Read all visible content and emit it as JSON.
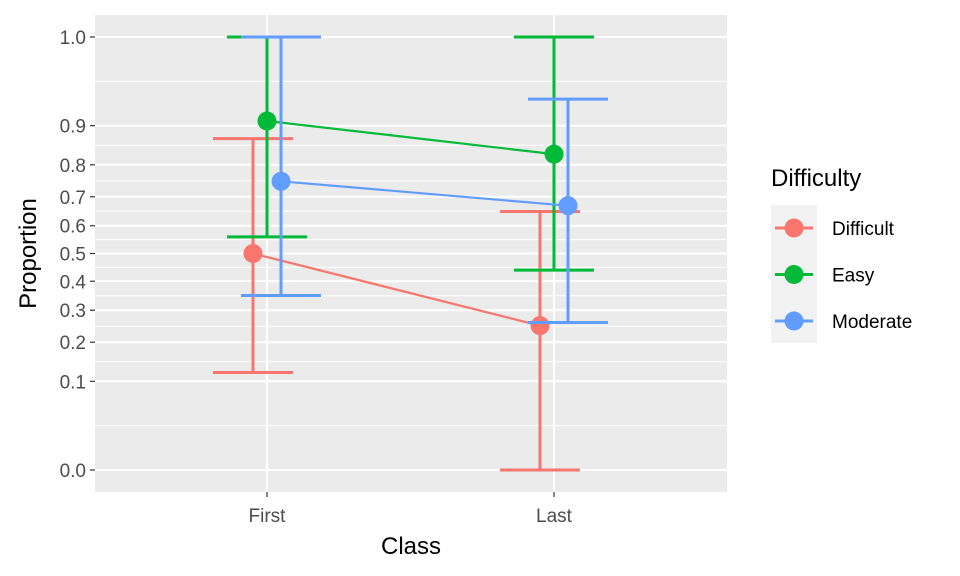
{
  "chart_data": {
    "type": "line",
    "title": "",
    "xlabel": "Class",
    "ylabel": "Proportion",
    "categories": [
      "First",
      "Last"
    ],
    "y_scale": "arcsine-sqrt",
    "ylim": [
      0,
      1
    ],
    "y_ticks": [
      0.0,
      0.1,
      0.2,
      0.3,
      0.4,
      0.5,
      0.6,
      0.7,
      0.8,
      0.9,
      1.0
    ],
    "y_tick_labels": [
      "0.0",
      "0.1",
      "0.2",
      "0.3",
      "0.4",
      "0.5",
      "0.6",
      "0.7",
      "0.8",
      "0.9",
      "1.0"
    ],
    "grid": true,
    "legend": {
      "title": "Difficulty",
      "position": "right"
    },
    "series": [
      {
        "name": "Difficult",
        "color": "#F8766D",
        "values": [
          0.5,
          0.25
        ],
        "lower": [
          0.12,
          0.0
        ],
        "upper": [
          0.87,
          0.65
        ]
      },
      {
        "name": "Easy",
        "color": "#00BA38",
        "values": [
          0.91,
          0.83
        ],
        "lower": [
          0.56,
          0.44
        ],
        "upper": [
          1.0,
          1.0
        ]
      },
      {
        "name": "Moderate",
        "color": "#619CFF",
        "values": [
          0.75,
          0.67
        ],
        "lower": [
          0.35,
          0.26
        ],
        "upper": [
          1.0,
          0.95
        ]
      }
    ]
  }
}
